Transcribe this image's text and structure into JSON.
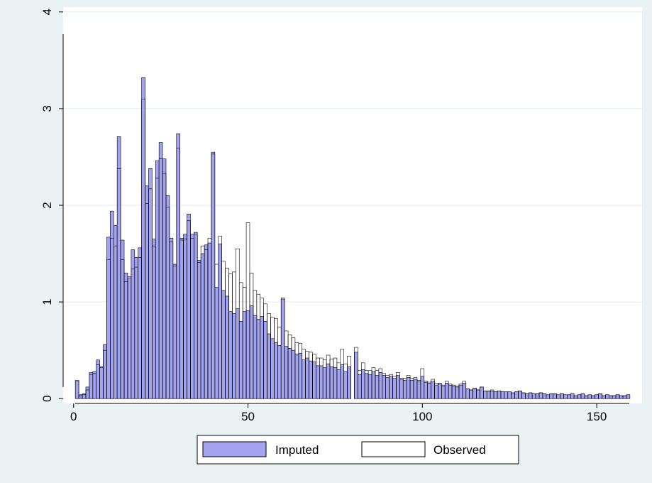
{
  "chart_data": {
    "type": "bar",
    "title": "",
    "xlabel": "",
    "ylabel": "",
    "xlim": [
      -3,
      163
    ],
    "ylim": [
      -0.05,
      4.05
    ],
    "x_ticks": [
      0,
      50,
      100,
      150
    ],
    "y_ticks": [
      0,
      1,
      2,
      3,
      4
    ],
    "grid": "horizontal",
    "legend_position": "bottom",
    "colors": {
      "background": "#eaf2f3",
      "plot_background": "#ffffff",
      "imputed_fill": "#a3a3f0",
      "bar_outline": "#000000",
      "grid": "#e2eded"
    },
    "x": [
      1,
      2,
      3,
      4,
      5,
      6,
      7,
      8,
      9,
      10,
      11,
      12,
      13,
      14,
      15,
      16,
      17,
      18,
      19,
      20,
      21,
      22,
      23,
      24,
      25,
      26,
      27,
      28,
      29,
      30,
      31,
      32,
      33,
      34,
      35,
      36,
      37,
      38,
      39,
      40,
      41,
      42,
      43,
      44,
      45,
      46,
      47,
      48,
      49,
      50,
      51,
      52,
      53,
      54,
      55,
      56,
      57,
      58,
      59,
      60,
      61,
      62,
      63,
      64,
      65,
      66,
      67,
      68,
      69,
      70,
      71,
      72,
      73,
      74,
      75,
      76,
      77,
      78,
      79,
      80,
      81,
      82,
      83,
      84,
      85,
      86,
      87,
      88,
      89,
      90,
      91,
      92,
      93,
      94,
      95,
      96,
      97,
      98,
      99,
      100,
      101,
      102,
      103,
      104,
      105,
      106,
      107,
      108,
      109,
      110,
      111,
      112,
      113,
      114,
      115,
      116,
      117,
      118,
      119,
      120,
      121,
      122,
      123,
      124,
      125,
      126,
      127,
      128,
      129,
      130,
      131,
      132,
      133,
      134,
      135,
      136,
      137,
      138,
      139,
      140,
      141,
      142,
      143,
      144,
      145,
      146,
      147,
      148,
      149,
      150,
      151,
      152,
      153,
      154,
      155,
      156,
      157,
      158,
      159
    ],
    "series": [
      {
        "name": "Imputed",
        "values": [
          0.18,
          0.04,
          0.05,
          0.12,
          0.27,
          0.28,
          0.4,
          0.33,
          0.56,
          1.67,
          1.94,
          1.79,
          2.71,
          1.64,
          1.3,
          1.25,
          1.54,
          1.46,
          1.56,
          3.32,
          2.2,
          2.38,
          1.65,
          2.46,
          2.65,
          2.48,
          2.1,
          1.66,
          1.39,
          2.74,
          1.66,
          1.7,
          1.91,
          1.7,
          1.72,
          1.43,
          1.5,
          1.59,
          1.61,
          2.55,
          1.15,
          1.6,
          1.12,
          1.06,
          0.9,
          0.88,
          0.93,
          0.8,
          0.9,
          0.91,
          0.96,
          0.86,
          0.82,
          0.85,
          0.8,
          0.67,
          0.62,
          0.58,
          0.55,
          1.03,
          0.54,
          0.52,
          0.5,
          0.46,
          0.47,
          0.4,
          0.42,
          0.39,
          0.38,
          0.34,
          0.34,
          0.32,
          0.36,
          0.33,
          0.32,
          0.3,
          0.35,
          0.28,
          0.33,
          0.0,
          0.48,
          0.25,
          0.3,
          0.26,
          0.25,
          0.28,
          0.24,
          0.27,
          0.24,
          0.22,
          0.23,
          0.21,
          0.24,
          0.2,
          0.19,
          0.22,
          0.19,
          0.2,
          0.18,
          0.23,
          0.17,
          0.16,
          0.18,
          0.14,
          0.15,
          0.13,
          0.16,
          0.14,
          0.13,
          0.12,
          0.14,
          0.16,
          0.1,
          0.09,
          0.1,
          0.09,
          0.12,
          0.08,
          0.08,
          0.08,
          0.07,
          0.08,
          0.07,
          0.07,
          0.07,
          0.06,
          0.07,
          0.08,
          0.06,
          0.05,
          0.06,
          0.05,
          0.05,
          0.06,
          0.05,
          0.04,
          0.05,
          0.05,
          0.04,
          0.05,
          0.04,
          0.04,
          0.05,
          0.03,
          0.04,
          0.05,
          0.03,
          0.04,
          0.03,
          0.04,
          0.05,
          0.03,
          0.04,
          0.03,
          0.03,
          0.04,
          0.03,
          0.03,
          0.04
        ]
      },
      {
        "name": "Observed",
        "values": [
          0.19,
          0.03,
          0.04,
          0.09,
          0.25,
          0.26,
          0.35,
          0.32,
          0.5,
          1.44,
          1.66,
          1.58,
          2.38,
          1.44,
          1.21,
          1.26,
          1.34,
          1.36,
          1.46,
          3.1,
          2.02,
          2.17,
          1.58,
          2.28,
          2.48,
          2.33,
          1.98,
          1.62,
          1.37,
          2.59,
          1.64,
          1.65,
          1.84,
          1.66,
          1.7,
          1.41,
          1.58,
          1.54,
          1.66,
          2.53,
          1.39,
          1.68,
          1.42,
          1.35,
          1.29,
          1.31,
          1.55,
          1.2,
          1.15,
          1.82,
          1.3,
          1.12,
          1.08,
          1.04,
          0.98,
          0.88,
          0.84,
          0.83,
          0.74,
          1.04,
          0.7,
          0.66,
          0.63,
          0.58,
          0.57,
          0.51,
          0.49,
          0.48,
          0.46,
          0.42,
          0.42,
          0.4,
          0.45,
          0.41,
          0.42,
          0.37,
          0.51,
          0.36,
          0.44,
          0.0,
          0.53,
          0.29,
          0.37,
          0.29,
          0.29,
          0.32,
          0.29,
          0.31,
          0.26,
          0.24,
          0.25,
          0.23,
          0.27,
          0.21,
          0.21,
          0.24,
          0.21,
          0.22,
          0.19,
          0.31,
          0.18,
          0.17,
          0.2,
          0.16,
          0.16,
          0.14,
          0.18,
          0.15,
          0.14,
          0.13,
          0.15,
          0.18,
          0.1,
          0.09,
          0.11,
          0.09,
          0.12,
          0.08,
          0.08,
          0.09,
          0.07,
          0.08,
          0.07,
          0.07,
          0.07,
          0.06,
          0.07,
          0.08,
          0.06,
          0.05,
          0.06,
          0.05,
          0.05,
          0.06,
          0.05,
          0.04,
          0.05,
          0.05,
          0.04,
          0.05,
          0.04,
          0.04,
          0.05,
          0.03,
          0.04,
          0.05,
          0.03,
          0.04,
          0.03,
          0.04,
          0.05,
          0.03,
          0.04,
          0.03,
          0.03,
          0.04,
          0.03,
          0.03,
          0.04
        ]
      }
    ]
  }
}
